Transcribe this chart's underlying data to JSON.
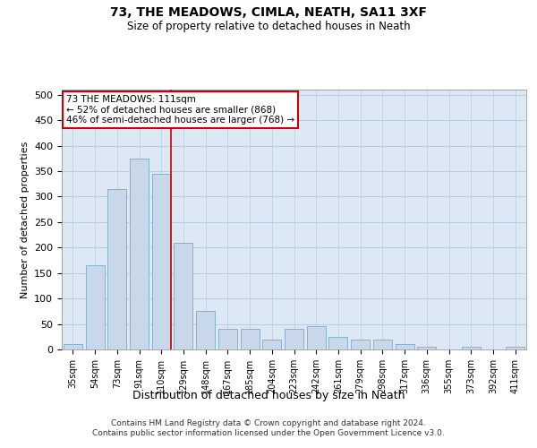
{
  "title": "73, THE MEADOWS, CIMLA, NEATH, SA11 3XF",
  "subtitle": "Size of property relative to detached houses in Neath",
  "xlabel": "Distribution of detached houses by size in Neath",
  "ylabel": "Number of detached properties",
  "footer_line1": "Contains HM Land Registry data © Crown copyright and database right 2024.",
  "footer_line2": "Contains public sector information licensed under the Open Government Licence v3.0.",
  "bin_labels": [
    "35sqm",
    "54sqm",
    "73sqm",
    "91sqm",
    "110sqm",
    "129sqm",
    "148sqm",
    "167sqm",
    "185sqm",
    "204sqm",
    "223sqm",
    "242sqm",
    "261sqm",
    "279sqm",
    "298sqm",
    "317sqm",
    "336sqm",
    "355sqm",
    "373sqm",
    "392sqm",
    "411sqm"
  ],
  "bar_heights": [
    10,
    165,
    315,
    375,
    345,
    210,
    75,
    40,
    40,
    20,
    40,
    45,
    25,
    20,
    20,
    10,
    5,
    0,
    5,
    0,
    5
  ],
  "bar_color": "#c8d8ea",
  "bar_edge_color": "#7aaac8",
  "grid_color": "#b8cce0",
  "bg_color": "#dce8f4",
  "red_line_color": "#cc0000",
  "annotation_text": "73 THE MEADOWS: 111sqm\n← 52% of detached houses are smaller (868)\n46% of semi-detached houses are larger (768) →",
  "annotation_box_facecolor": "#ffffff",
  "annotation_box_edgecolor": "#cc0000",
  "ylim": [
    0,
    510
  ],
  "yticks": [
    0,
    50,
    100,
    150,
    200,
    250,
    300,
    350,
    400,
    450,
    500
  ]
}
